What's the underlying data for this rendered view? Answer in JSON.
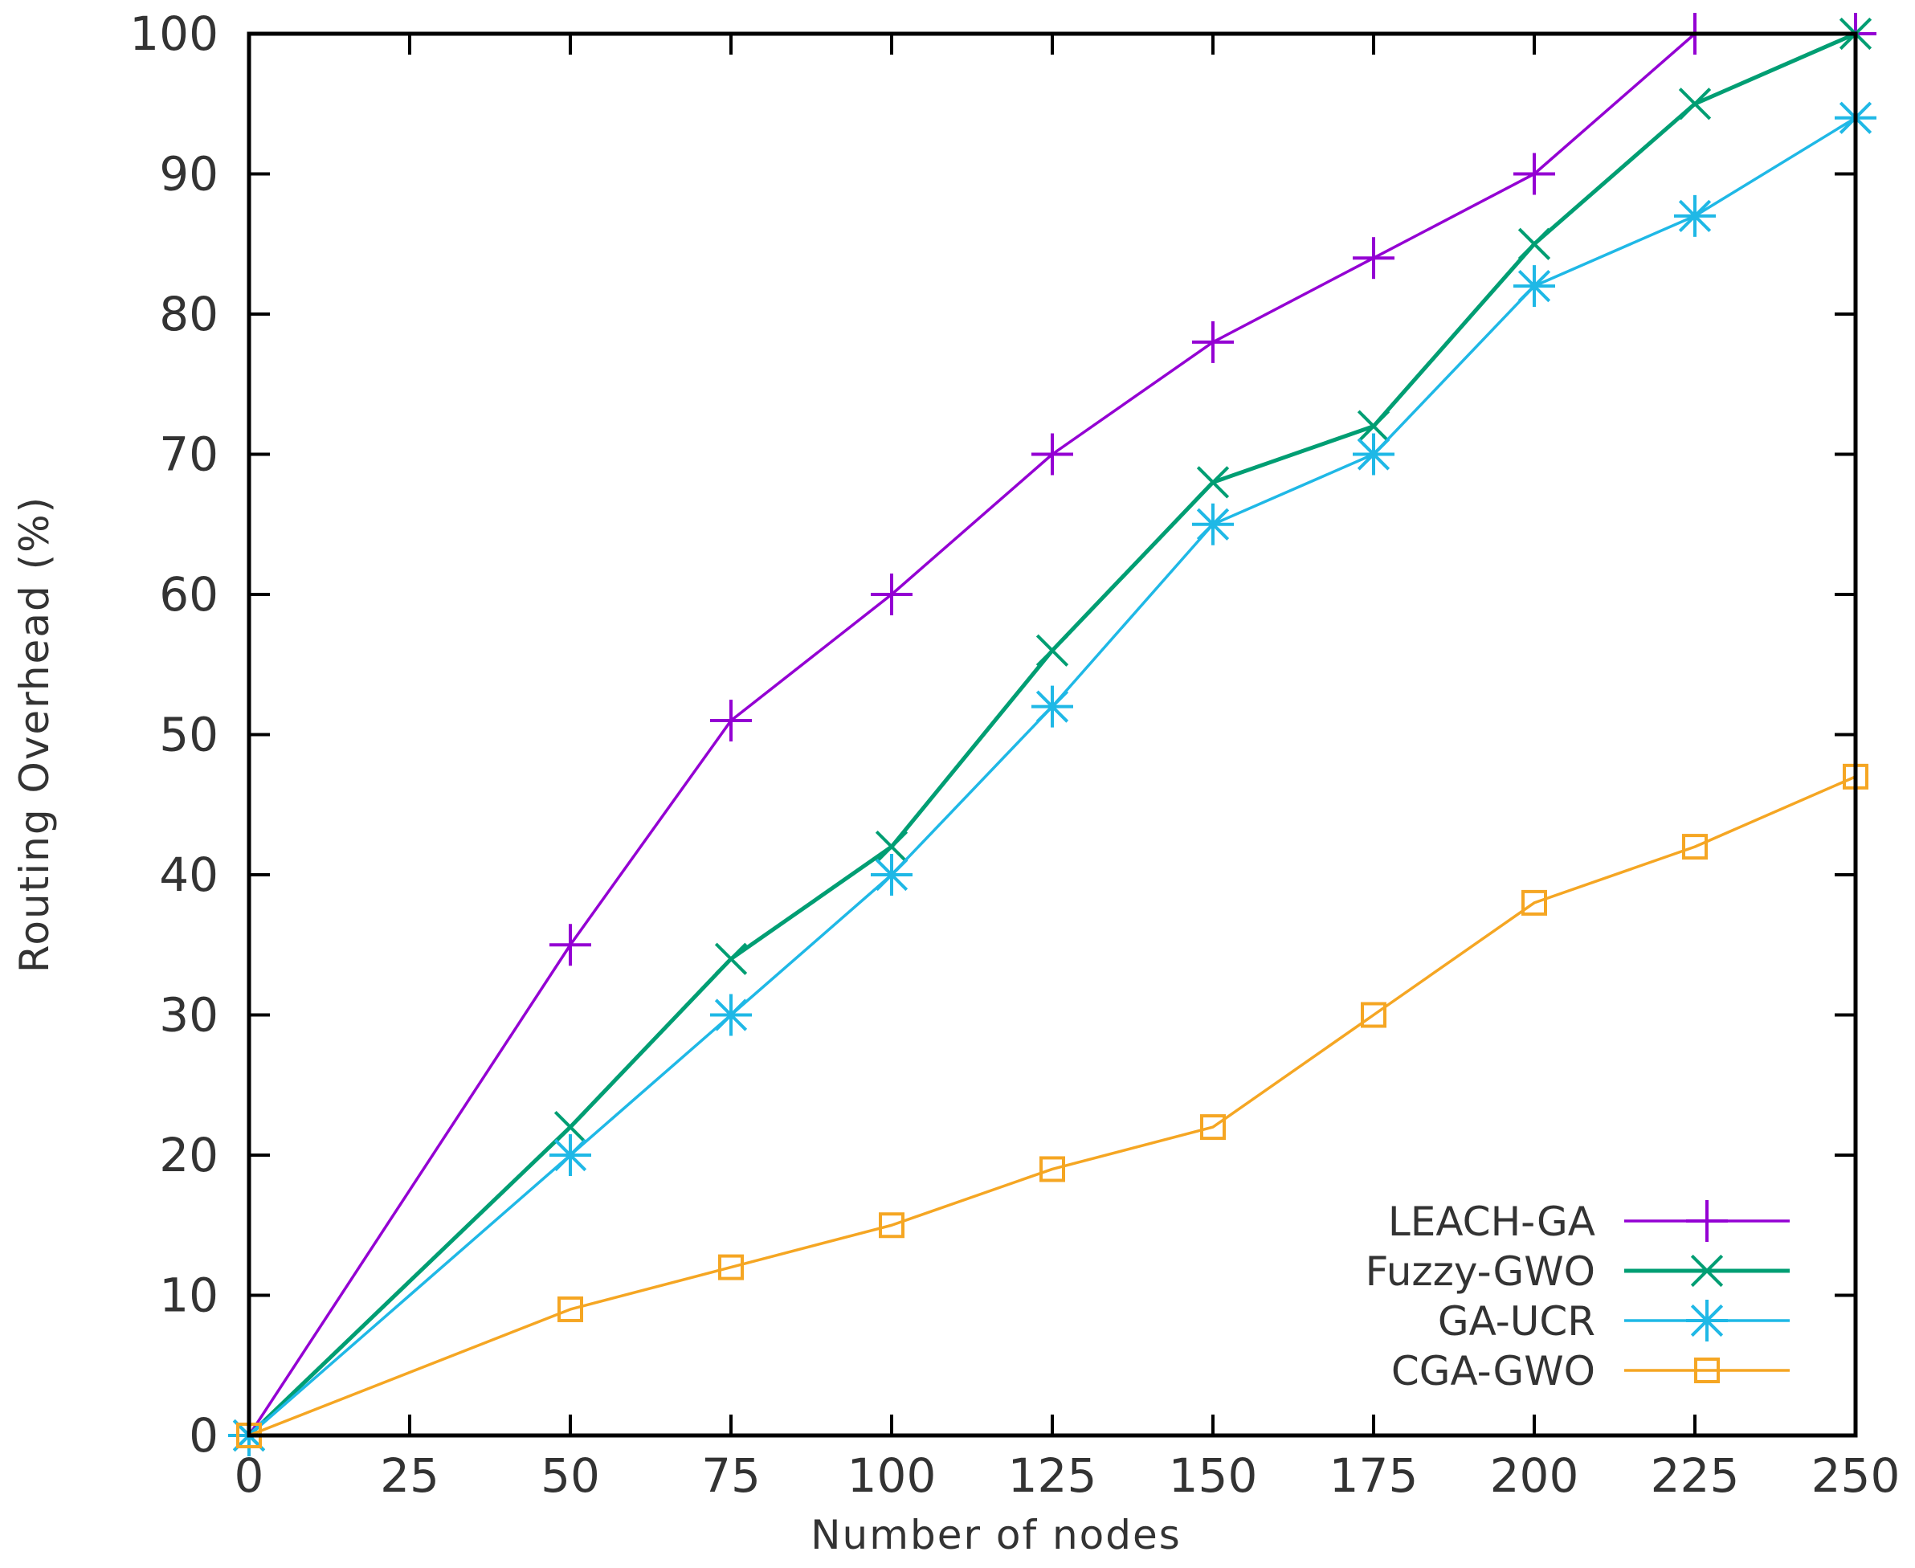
{
  "chart_data": {
    "type": "line",
    "title": "",
    "xlabel": "Number of nodes",
    "ylabel": "Routing Overhead (%)",
    "xlim": [
      0,
      250
    ],
    "ylim": [
      0,
      100
    ],
    "xticks": [
      0,
      25,
      50,
      75,
      100,
      125,
      150,
      175,
      200,
      225,
      250
    ],
    "yticks": [
      0,
      10,
      20,
      30,
      40,
      50,
      60,
      70,
      80,
      90,
      100
    ],
    "grid": false,
    "legend_position": "bottom-right",
    "x": [
      0,
      50,
      75,
      100,
      125,
      150,
      175,
      200,
      225,
      250
    ],
    "series": [
      {
        "name": "LEACH-GA",
        "color": "#9400d3",
        "marker": "plus",
        "values": [
          0,
          35,
          51,
          60,
          70,
          78,
          84,
          90,
          100,
          100
        ]
      },
      {
        "name": "Fuzzy-GWO",
        "color": "#009e73",
        "marker": "cross",
        "values": [
          0,
          22,
          34,
          42,
          56,
          68,
          72,
          85,
          95,
          100
        ]
      },
      {
        "name": "GA-UCR",
        "color": "#1fb8e6",
        "marker": "asterisk",
        "values": [
          0,
          20,
          30,
          40,
          52,
          65,
          70,
          82,
          87,
          94
        ]
      },
      {
        "name": "CGA-GWO",
        "color": "#f5a623",
        "marker": "square",
        "values": [
          0,
          9,
          12,
          15,
          19,
          22,
          30,
          38,
          42,
          47
        ]
      }
    ]
  }
}
